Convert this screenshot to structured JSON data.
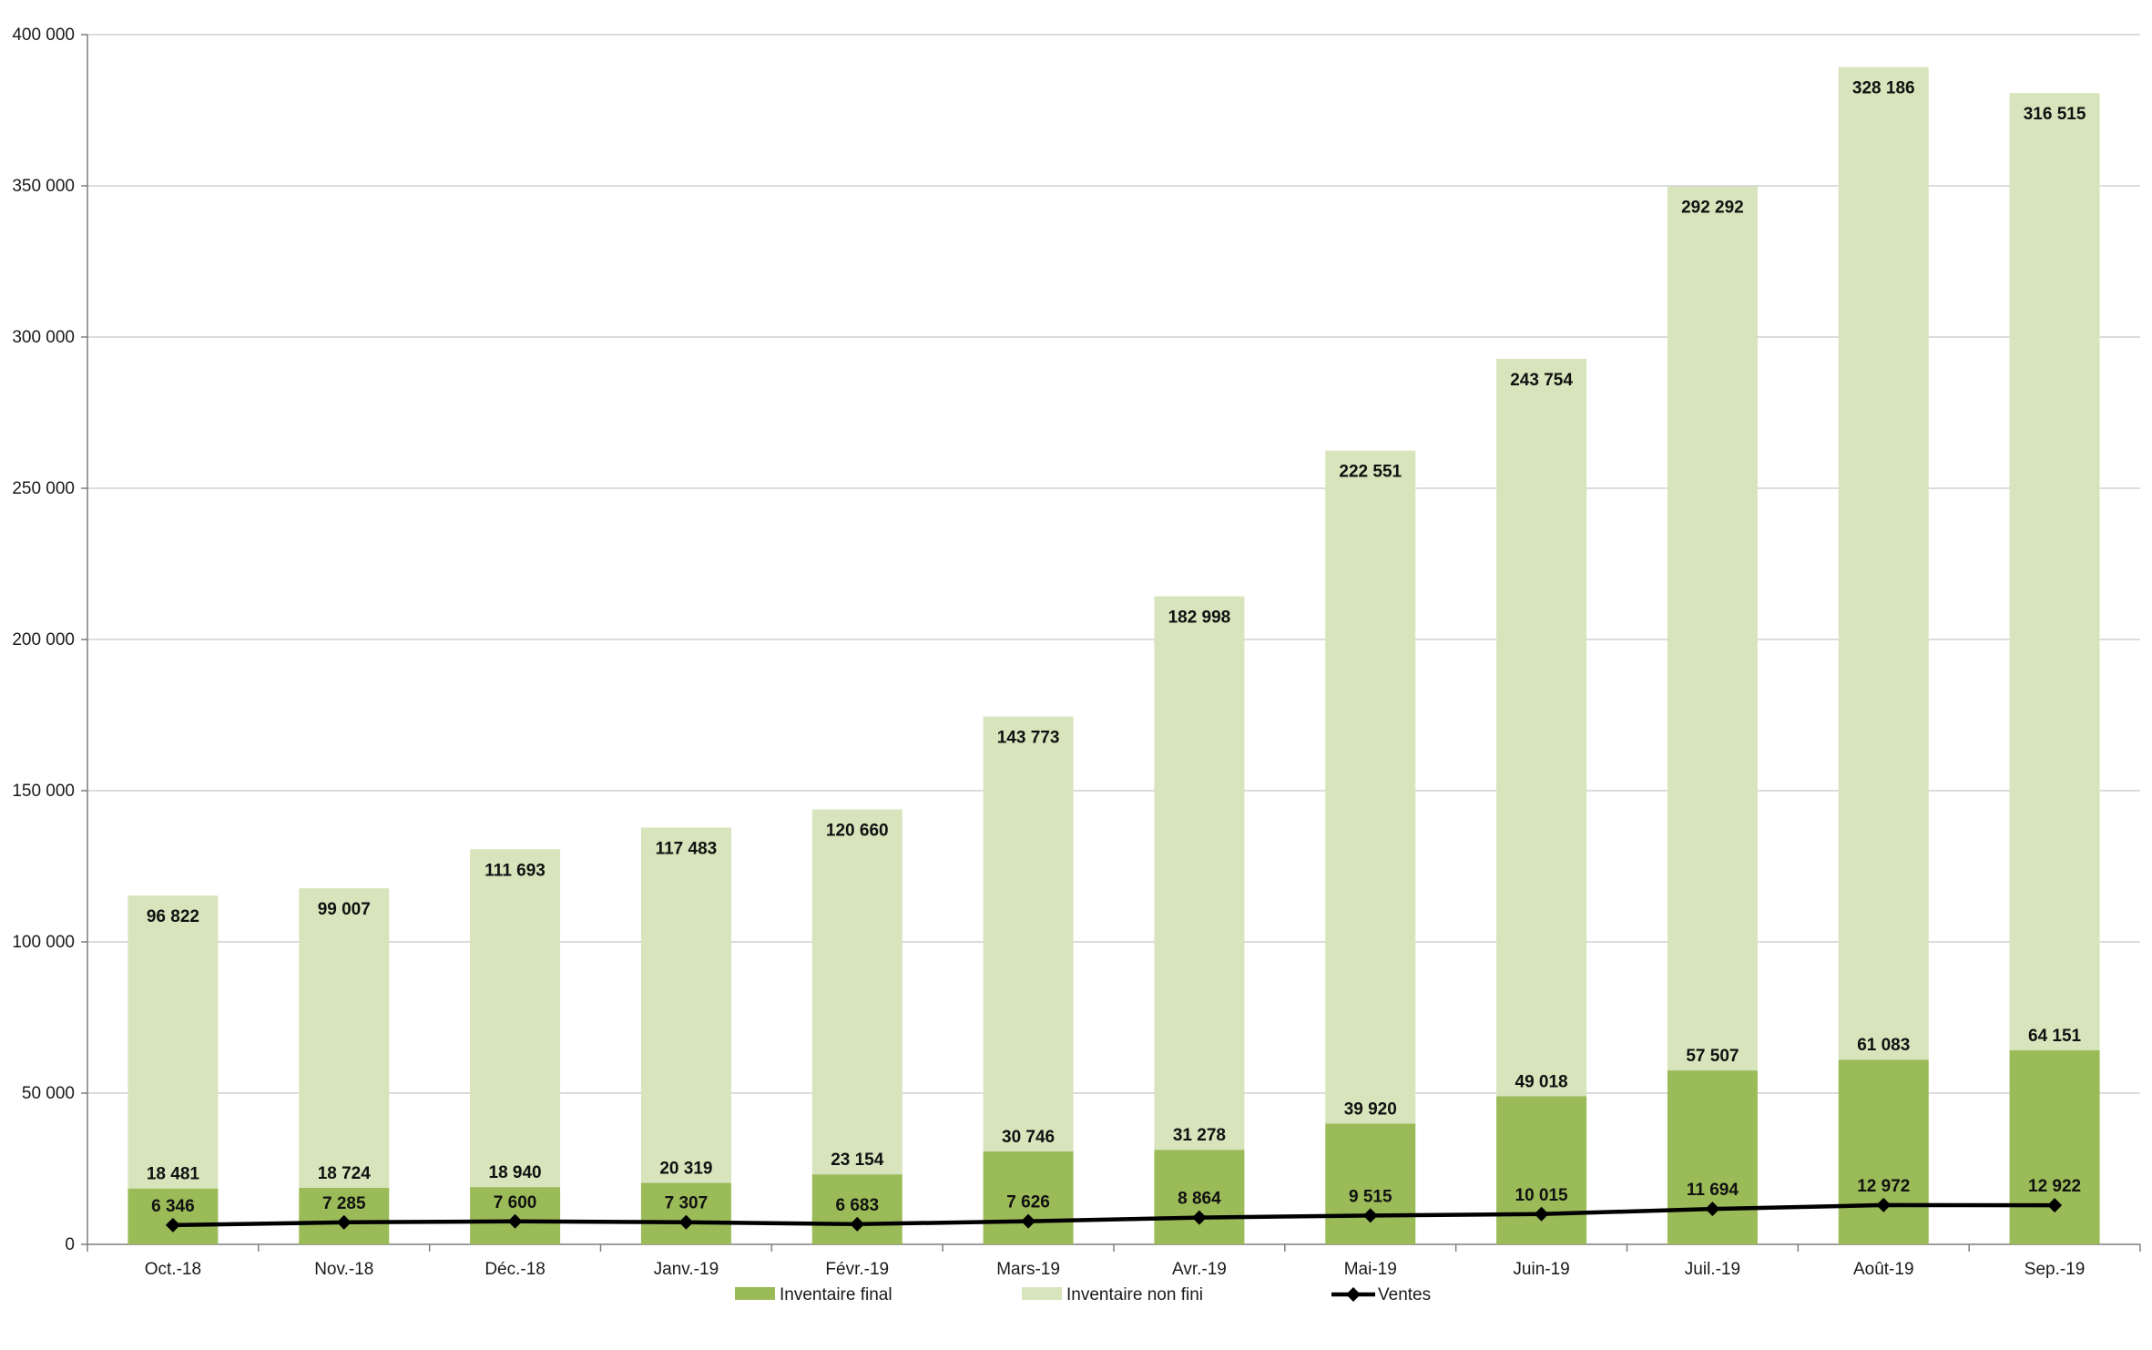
{
  "chart_data": {
    "type": "bar",
    "stacked": true,
    "title": "",
    "xlabel": "",
    "ylabel": "",
    "ylim": [
      0,
      400000
    ],
    "yticks": [
      0,
      50000,
      100000,
      150000,
      200000,
      250000,
      300000,
      350000,
      400000
    ],
    "ytick_labels": [
      "0",
      "50 000",
      "100 000",
      "150 000",
      "200 000",
      "250 000",
      "300 000",
      "350 000",
      "400 000"
    ],
    "grid": true,
    "legend_position": "bottom",
    "categories": [
      "Oct.-18",
      "Nov.-18",
      "Déc.-18",
      "Janv.-19",
      "Févr.-19",
      "Mars-19",
      "Avr.-19",
      "Mai-19",
      "Juin-19",
      "Juil.-19",
      "Août-19",
      "Sep.-19"
    ],
    "series": [
      {
        "name": "Inventaire final",
        "kind": "bar",
        "color": "#9bbb59",
        "values": [
          18481,
          18724,
          18940,
          20319,
          23154,
          30746,
          31278,
          39920,
          49018,
          57507,
          61083,
          64151
        ],
        "labels": [
          "18 481",
          "18 724",
          "18 940",
          "20 319",
          "23 154",
          "30 746",
          "31 278",
          "39 920",
          "49 018",
          "57 507",
          "61 083",
          "64 151"
        ]
      },
      {
        "name": "Inventaire non fini",
        "kind": "bar",
        "color": "#d8e4bc",
        "values": [
          96822,
          99007,
          111693,
          117483,
          120660,
          143773,
          182998,
          222551,
          243754,
          292292,
          328186,
          316515
        ],
        "labels": [
          "96 822",
          "99 007",
          "111 693",
          "117 483",
          "120 660",
          "143 773",
          "182 998",
          "222 551",
          "243 754",
          "292 292",
          "328 186",
          "316 515"
        ]
      },
      {
        "name": "Ventes",
        "kind": "line",
        "color": "#000000",
        "marker": "diamond",
        "values": [
          6346,
          7285,
          7600,
          7307,
          6683,
          7626,
          8864,
          9515,
          10015,
          11694,
          12972,
          12922
        ],
        "labels": [
          "6 346",
          "7 285",
          "7 600",
          "7 307",
          "6 683",
          "7 626",
          "8 864",
          "9 515",
          "10 015",
          "11 694",
          "12 972",
          "12 922"
        ]
      }
    ]
  }
}
